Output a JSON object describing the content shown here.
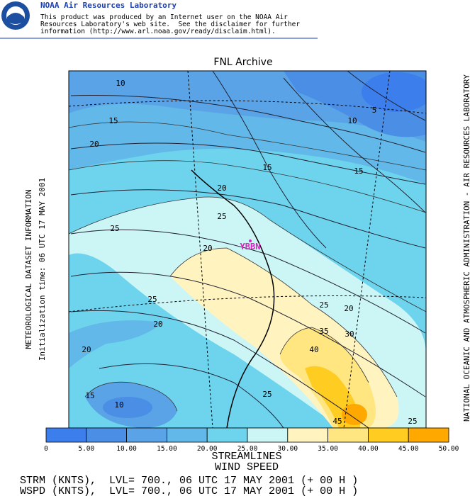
{
  "header": {
    "title": "NOAA Air Resources Laboratory",
    "lines": [
      "This product was produced by an Internet user on the NOAA Air",
      "Resources Laboratory's web site.  See the disclaimer for further",
      "information (http://www.arl.noaa.gov/ready/disclaim.html)."
    ]
  },
  "map": {
    "title": "FNL Archive",
    "left_labels": [
      "METEOROLOGICAL DATASET INFORMATION",
      "Initialization time: 06 UTC 17 MAY 2001"
    ],
    "right_label": "NATIONAL OCEANIC AND ATMOSPHERIC ADMINISTRATION - AIR RESOURCES LABORATORY",
    "station": "YBBN",
    "contour_labels": [
      "10",
      "5",
      "15",
      "10",
      "20",
      "15",
      "15",
      "20",
      "25",
      "25",
      "20",
      "25",
      "25",
      "20",
      "20",
      "35",
      "30",
      "40",
      "20",
      "15",
      "10",
      "25",
      "45",
      "25"
    ]
  },
  "colorbar": {
    "colors": [
      "#3c7eec",
      "#4a8ee6",
      "#59a3e6",
      "#62b8e8",
      "#6ed4ee",
      "#ccf6f6",
      "#fff3c0",
      "#ffe680",
      "#ffcc22",
      "#ffa800"
    ],
    "labels": [
      "0",
      "5.00",
      "10.00",
      "15.00",
      "20.00",
      "25.00",
      "30.00",
      "35.00",
      "40.00",
      "45.00",
      "50.00"
    ]
  },
  "footer": {
    "lines": [
      "STREAMLINES",
      "WIND SPEED",
      "STRM (KNTS),  LVL= 700., 06 UTC 17 MAY 2001 (+ 00 H )",
      "WSPD (KNTS),  LVL= 700., 06 UTC 17 MAY 2001 (+ 00 H )"
    ]
  }
}
